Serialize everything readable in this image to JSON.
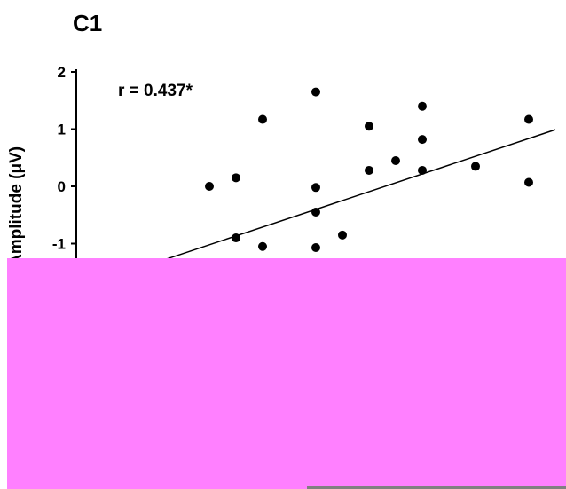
{
  "chart_data": {
    "type": "scatter",
    "panel_label": "C1",
    "annotation": "r = 0.437*",
    "ylabel": "Amplitude (μV)",
    "xlabel": "",
    "ylim": [
      -1.6,
      2.1
    ],
    "xlim": [
      0,
      18
    ],
    "y_ticks": [
      2,
      1,
      0,
      -1
    ],
    "points": [
      {
        "x": 5.0,
        "y": 0.0
      },
      {
        "x": 6.0,
        "y": 0.15
      },
      {
        "x": 6.0,
        "y": -0.9
      },
      {
        "x": 7.0,
        "y": 1.17
      },
      {
        "x": 7.0,
        "y": -1.05
      },
      {
        "x": 9.0,
        "y": 1.65
      },
      {
        "x": 9.0,
        "y": -0.02
      },
      {
        "x": 9.0,
        "y": -0.45
      },
      {
        "x": 9.0,
        "y": -1.07
      },
      {
        "x": 10.0,
        "y": -0.85
      },
      {
        "x": 11.0,
        "y": 1.05
      },
      {
        "x": 11.0,
        "y": 0.28
      },
      {
        "x": 12.0,
        "y": 0.45
      },
      {
        "x": 13.0,
        "y": 1.4
      },
      {
        "x": 13.0,
        "y": 0.82
      },
      {
        "x": 13.0,
        "y": 0.28
      },
      {
        "x": 15.0,
        "y": 0.35
      },
      {
        "x": 17.0,
        "y": 1.17
      },
      {
        "x": 17.0,
        "y": 0.07
      }
    ],
    "trendline": {
      "x": [
        3.0,
        18.0
      ],
      "y": [
        -1.33,
        0.99
      ]
    },
    "grid": false
  }
}
